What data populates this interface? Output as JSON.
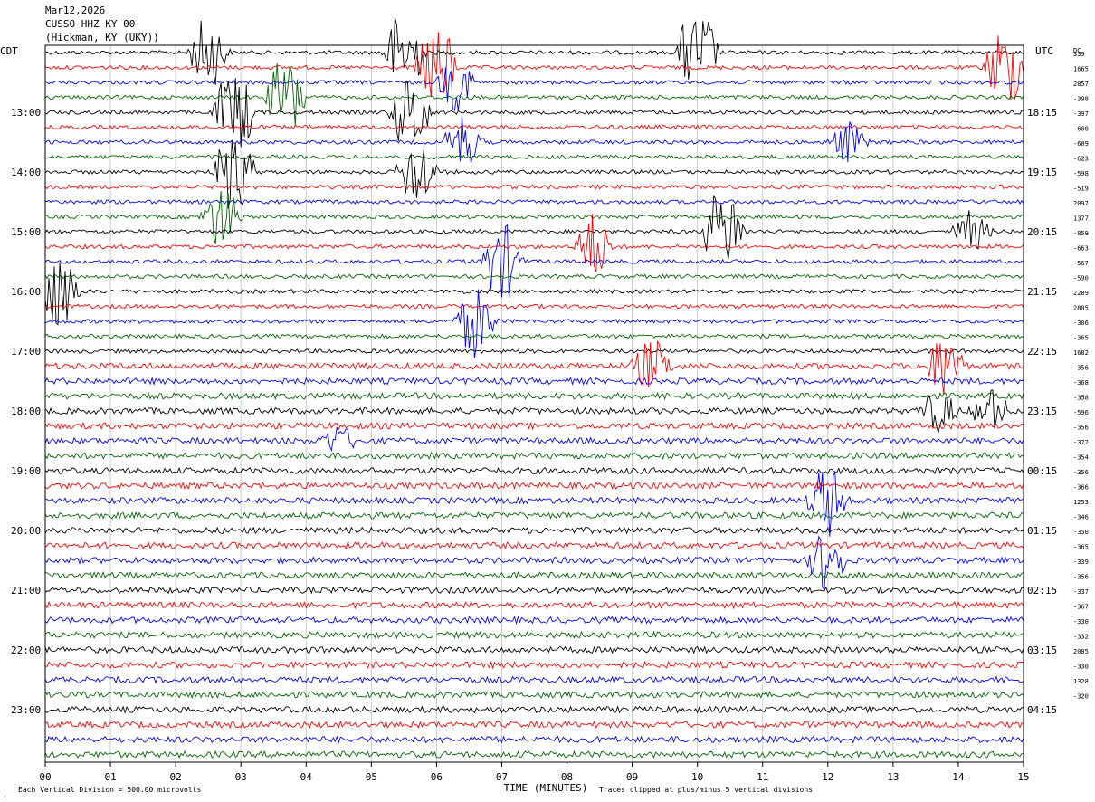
{
  "header": {
    "date": "Mar12,2026",
    "station": "CUSSO HHZ KY 00",
    "location": "(Hickman, KY (UKY))"
  },
  "left_timezone": "CDT",
  "right_timezone": "UTC",
  "dc_label": "DC",
  "x_axis": {
    "title": "TIME (MINUTES)",
    "ticks": [
      "00",
      "01",
      "02",
      "03",
      "04",
      "05",
      "06",
      "07",
      "08",
      "09",
      "10",
      "11",
      "12",
      "13",
      "14",
      "15"
    ]
  },
  "footer": {
    "scale": "Each Vertical Division =  500.00 microvolts",
    "clip": "Traces clipped at plus/minus 5 vertical divisions"
  },
  "colors": {
    "trace_cycle": [
      "#000000",
      "#ff0000",
      "#0000ff",
      "#006600"
    ],
    "grid": "#cccccc"
  },
  "chart_data": {
    "type": "line",
    "subtype": "helicorder",
    "x_range": [
      0,
      15
    ],
    "x_unit": "minutes",
    "trace_count": 48,
    "trace_minutes": 15,
    "left_time_labels": [
      "13:00",
      "14:00",
      "15:00",
      "16:00",
      "17:00",
      "18:00",
      "19:00",
      "20:00",
      "21:00",
      "22:00",
      "23:00"
    ],
    "left_label_rows": [
      4,
      8,
      12,
      16,
      20,
      24,
      28,
      32,
      36,
      40,
      44
    ],
    "right_time_labels": [
      "18:15",
      "19:15",
      "20:15",
      "21:15",
      "22:15",
      "23:15",
      "00:15",
      "01:15",
      "02:15",
      "03:15",
      "04:15"
    ],
    "right_label_rows": [
      4,
      8,
      12,
      16,
      20,
      24,
      28,
      32,
      36,
      40,
      44
    ],
    "dc_offsets": [
      "339",
      "1665",
      "2857",
      "-398",
      "-397",
      "-600",
      "-609",
      "-623",
      "-598",
      "-519",
      "2097",
      "1377",
      "-859",
      "-663",
      "-567",
      "-590",
      "2209",
      "2805",
      "-306",
      "-365",
      "1682",
      "-356",
      "-368",
      "-358",
      "-596",
      "-356",
      "-372",
      "-354",
      "-356",
      "-366",
      "1253",
      "-346",
      "-350",
      "-365",
      "-339",
      "-356",
      "-337",
      "-367",
      "-330",
      "-332",
      "2085",
      "-330",
      "1328",
      "-320"
    ],
    "events": [
      {
        "row": 0,
        "minute": 2.5,
        "amp": 6
      },
      {
        "row": 0,
        "minute": 5.5,
        "amp": 9
      },
      {
        "row": 0,
        "minute": 10.0,
        "amp": 10
      },
      {
        "row": 1,
        "minute": 6.0,
        "amp": 9
      },
      {
        "row": 1,
        "minute": 14.7,
        "amp": 8
      },
      {
        "row": 2,
        "minute": 6.3,
        "amp": 4
      },
      {
        "row": 3,
        "minute": 3.7,
        "amp": 8
      },
      {
        "row": 4,
        "minute": 2.9,
        "amp": 9
      },
      {
        "row": 4,
        "minute": 5.6,
        "amp": 8
      },
      {
        "row": 6,
        "minute": 6.4,
        "amp": 4
      },
      {
        "row": 6,
        "minute": 12.3,
        "amp": 3
      },
      {
        "row": 8,
        "minute": 2.9,
        "amp": 9
      },
      {
        "row": 8,
        "minute": 5.7,
        "amp": 6
      },
      {
        "row": 11,
        "minute": 2.7,
        "amp": 5
      },
      {
        "row": 12,
        "minute": 10.4,
        "amp": 10
      },
      {
        "row": 12,
        "minute": 14.2,
        "amp": 3
      },
      {
        "row": 13,
        "minute": 8.4,
        "amp": 5
      },
      {
        "row": 14,
        "minute": 7.0,
        "amp": 7
      },
      {
        "row": 16,
        "minute": 0.2,
        "amp": 9
      },
      {
        "row": 18,
        "minute": 6.6,
        "amp": 6
      },
      {
        "row": 21,
        "minute": 9.3,
        "amp": 4
      },
      {
        "row": 21,
        "minute": 13.8,
        "amp": 5
      },
      {
        "row": 24,
        "minute": 13.7,
        "amp": 3
      },
      {
        "row": 24,
        "minute": 14.5,
        "amp": 3
      },
      {
        "row": 26,
        "minute": 4.5,
        "amp": 2
      },
      {
        "row": 30,
        "minute": 12.0,
        "amp": 6
      },
      {
        "row": 34,
        "minute": 12.0,
        "amp": 5
      }
    ]
  }
}
